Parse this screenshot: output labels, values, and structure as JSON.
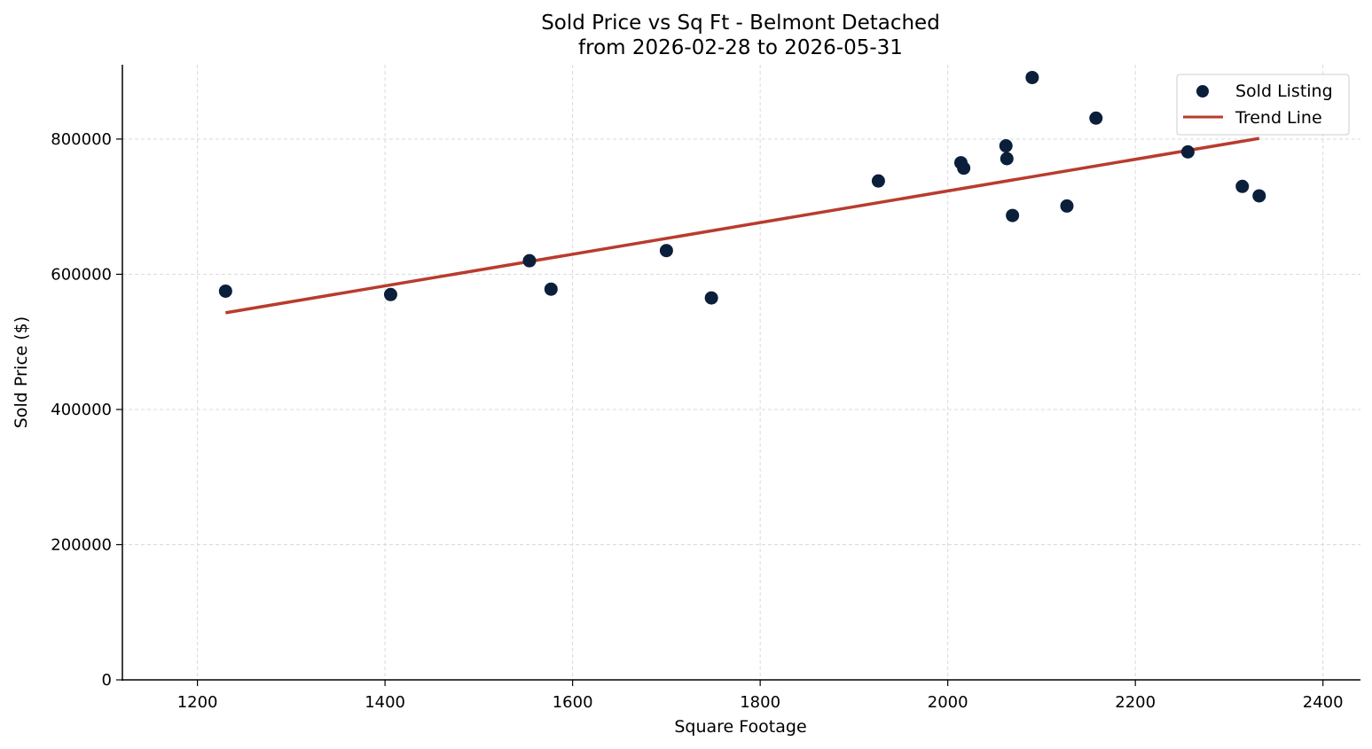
{
  "chart_data": {
    "type": "scatter",
    "title": "Sold Price vs Sq Ft - Belmont Detached",
    "subtitle": "from 2026-02-28 to 2026-05-31",
    "xlabel": "Square Footage",
    "ylabel": "Sold Price ($)",
    "xlim": [
      1120,
      2440
    ],
    "ylim": [
      0,
      910000
    ],
    "xticks": [
      1200,
      1400,
      1600,
      1800,
      2000,
      2200,
      2400
    ],
    "yticks": [
      0,
      200000,
      400000,
      600000,
      800000
    ],
    "xtick_labels": [
      "1200",
      "1400",
      "1600",
      "1800",
      "2000",
      "2200",
      "2400"
    ],
    "ytick_labels": [
      "0",
      "200000",
      "400000",
      "600000",
      "800000"
    ],
    "grid": true,
    "legend_position": "top-right",
    "series": [
      {
        "name": "Sold Listing",
        "kind": "scatter",
        "color": "#0b1f3a",
        "points": [
          {
            "x": 1230,
            "y": 575000
          },
          {
            "x": 1406,
            "y": 570000
          },
          {
            "x": 1554,
            "y": 620000
          },
          {
            "x": 1577,
            "y": 578000
          },
          {
            "x": 1700,
            "y": 635000
          },
          {
            "x": 1748,
            "y": 565000
          },
          {
            "x": 1926,
            "y": 738000
          },
          {
            "x": 2014,
            "y": 765000
          },
          {
            "x": 2017,
            "y": 757000
          },
          {
            "x": 2062,
            "y": 790000
          },
          {
            "x": 2063,
            "y": 771000
          },
          {
            "x": 2069,
            "y": 687000
          },
          {
            "x": 2090,
            "y": 891000
          },
          {
            "x": 2127,
            "y": 701000
          },
          {
            "x": 2158,
            "y": 831000
          },
          {
            "x": 2256,
            "y": 781000
          },
          {
            "x": 2314,
            "y": 730000
          },
          {
            "x": 2332,
            "y": 716000
          }
        ]
      },
      {
        "name": "Trend Line",
        "kind": "line",
        "color": "#b83c2e",
        "points": [
          {
            "x": 1230,
            "y": 543000
          },
          {
            "x": 2332,
            "y": 801000
          }
        ]
      }
    ]
  }
}
